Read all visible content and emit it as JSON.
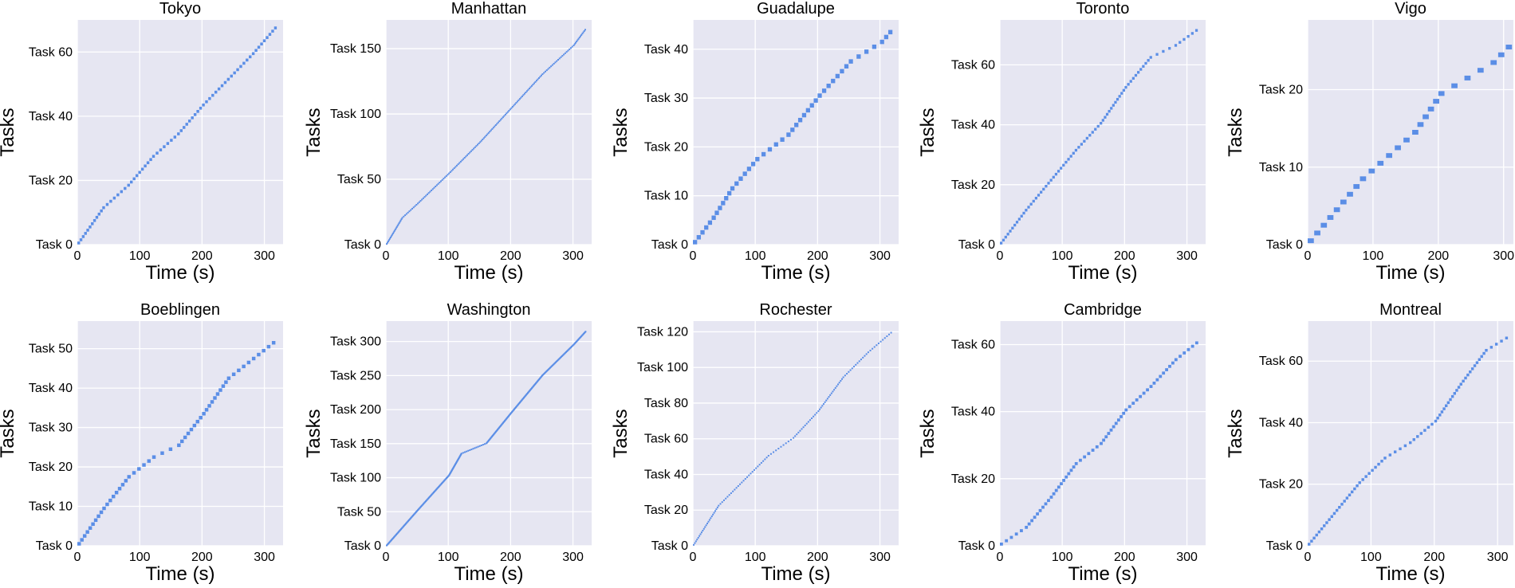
{
  "figure": {
    "xlabel": "Time (s)",
    "ylabel": "Tasks"
  },
  "chart_data": [
    {
      "type": "scatter",
      "title": "Tokyo",
      "xlabel": "Time (s)",
      "ylabel": "Tasks",
      "xlim": [
        0,
        330
      ],
      "ylim": [
        0,
        70
      ],
      "xticks": [
        0,
        100,
        200,
        300
      ],
      "xtick_labels": [
        "0",
        "100",
        "200",
        "300"
      ],
      "yticks": [
        0,
        20,
        40,
        60
      ],
      "ytick_labels": [
        "Task 0",
        "Task 20",
        "Task 40",
        "Task 60"
      ],
      "x": [
        0,
        40,
        80,
        120,
        160,
        200,
        240,
        280,
        320
      ],
      "y": [
        0,
        11,
        18,
        27,
        34,
        43,
        51,
        59,
        68
      ]
    },
    {
      "type": "scatter",
      "title": "Manhattan",
      "xlabel": "Time (s)",
      "ylabel": "Tasks",
      "xlim": [
        0,
        330
      ],
      "ylim": [
        0,
        172
      ],
      "xticks": [
        0,
        100,
        200,
        300
      ],
      "xtick_labels": [
        "0",
        "100",
        "200",
        "300"
      ],
      "yticks": [
        0,
        50,
        100,
        150
      ],
      "ytick_labels": [
        "Task 0",
        "Task 50",
        "Task 100",
        "Task 150"
      ],
      "x": [
        0,
        25,
        50,
        100,
        150,
        200,
        250,
        300,
        320
      ],
      "y": [
        0,
        20,
        31,
        54,
        78,
        104,
        130,
        152,
        165
      ]
    },
    {
      "type": "scatter",
      "title": "Guadalupe",
      "xlabel": "Time (s)",
      "ylabel": "Tasks",
      "xlim": [
        0,
        330
      ],
      "ylim": [
        0,
        46
      ],
      "xticks": [
        0,
        100,
        200,
        300
      ],
      "xtick_labels": [
        "0",
        "100",
        "200",
        "300"
      ],
      "yticks": [
        0,
        10,
        20,
        30,
        40
      ],
      "ytick_labels": [
        "Task 0",
        "Task 10",
        "Task 20",
        "Task 30",
        "Task 40"
      ],
      "x": [
        0,
        30,
        60,
        100,
        150,
        200,
        250,
        300,
        320
      ],
      "y": [
        0,
        5,
        11,
        17,
        22,
        30,
        37,
        41,
        44
      ]
    },
    {
      "type": "scatter",
      "title": "Toronto",
      "xlabel": "Time (s)",
      "ylabel": "Tasks",
      "xlim": [
        0,
        330
      ],
      "ylim": [
        0,
        75
      ],
      "xticks": [
        0,
        100,
        200,
        300
      ],
      "xtick_labels": [
        "0",
        "100",
        "200",
        "300"
      ],
      "yticks": [
        0,
        20,
        40,
        60
      ],
      "ytick_labels": [
        "Task 0",
        "Task 20",
        "Task 40",
        "Task 60"
      ],
      "x": [
        0,
        40,
        80,
        120,
        160,
        200,
        240,
        280,
        320
      ],
      "y": [
        0,
        11,
        21,
        31,
        40,
        52,
        62,
        66,
        72
      ]
    },
    {
      "type": "scatter",
      "title": "Vigo",
      "xlabel": "Time (s)",
      "ylabel": "Tasks",
      "xlim": [
        0,
        315
      ],
      "ylim": [
        0,
        29
      ],
      "xticks": [
        0,
        100,
        200,
        300
      ],
      "xtick_labels": [
        "0",
        "100",
        "200",
        "300"
      ],
      "yticks": [
        0,
        10,
        20
      ],
      "ytick_labels": [
        "Task 0",
        "Task 10",
        "Task 20"
      ],
      "x": [
        0,
        40,
        80,
        120,
        160,
        200,
        240,
        280,
        315
      ],
      "y": [
        0,
        4,
        8,
        11,
        14,
        19,
        21,
        23,
        26
      ]
    },
    {
      "type": "scatter",
      "title": "Boeblingen",
      "xlabel": "Time (s)",
      "ylabel": "Tasks",
      "xlim": [
        0,
        330
      ],
      "ylim": [
        0,
        57
      ],
      "xticks": [
        0,
        100,
        200,
        300
      ],
      "xtick_labels": [
        "0",
        "100",
        "200",
        "300"
      ],
      "yticks": [
        0,
        10,
        20,
        30,
        40,
        50
      ],
      "ytick_labels": [
        "Task 0",
        "Task 10",
        "Task 20",
        "Task 30",
        "Task 40",
        "Task 50"
      ],
      "x": [
        0,
        40,
        80,
        120,
        160,
        200,
        240,
        280,
        320
      ],
      "y": [
        0,
        9,
        17,
        22,
        25,
        33,
        42,
        47,
        52
      ]
    },
    {
      "type": "scatter",
      "title": "Washington",
      "xlabel": "Time (s)",
      "ylabel": "Tasks",
      "xlim": [
        0,
        330
      ],
      "ylim": [
        0,
        330
      ],
      "xticks": [
        0,
        100,
        200,
        300
      ],
      "xtick_labels": [
        "0",
        "100",
        "200",
        "300"
      ],
      "yticks": [
        0,
        50,
        100,
        150,
        200,
        250,
        300
      ],
      "ytick_labels": [
        "Task 0",
        "Task 50",
        "Task 100",
        "Task 150",
        "Task 200",
        "Task 250",
        "Task 300"
      ],
      "x": [
        0,
        50,
        100,
        120,
        160,
        200,
        250,
        300,
        320
      ],
      "y": [
        0,
        52,
        103,
        135,
        150,
        195,
        250,
        295,
        315
      ]
    },
    {
      "type": "scatter",
      "title": "Rochester",
      "xlabel": "Time (s)",
      "ylabel": "Tasks",
      "xlim": [
        0,
        330
      ],
      "ylim": [
        0,
        126
      ],
      "xticks": [
        0,
        100,
        200,
        300
      ],
      "xtick_labels": [
        "0",
        "100",
        "200",
        "300"
      ],
      "yticks": [
        0,
        20,
        40,
        60,
        80,
        100,
        120
      ],
      "ytick_labels": [
        "Task 0",
        "Task 20",
        "Task 40",
        "Task 60",
        "Task 80",
        "Task 100",
        "Task 120"
      ],
      "x": [
        0,
        40,
        80,
        120,
        160,
        200,
        240,
        280,
        320
      ],
      "y": [
        0,
        22,
        36,
        50,
        60,
        75,
        94,
        108,
        120
      ]
    },
    {
      "type": "scatter",
      "title": "Cambridge",
      "xlabel": "Time (s)",
      "ylabel": "Tasks",
      "xlim": [
        0,
        330
      ],
      "ylim": [
        0,
        67
      ],
      "xticks": [
        0,
        100,
        200,
        300
      ],
      "xtick_labels": [
        "0",
        "100",
        "200",
        "300"
      ],
      "yticks": [
        0,
        20,
        40,
        60
      ],
      "ytick_labels": [
        "Task 0",
        "Task 20",
        "Task 40",
        "Task 60"
      ],
      "x": [
        0,
        40,
        80,
        120,
        160,
        200,
        240,
        280,
        320
      ],
      "y": [
        0,
        5,
        14,
        24,
        30,
        40,
        47,
        55,
        61
      ]
    },
    {
      "type": "scatter",
      "title": "Montreal",
      "xlabel": "Time (s)",
      "ylabel": "Tasks",
      "xlim": [
        0,
        325
      ],
      "ylim": [
        0,
        73
      ],
      "xticks": [
        0,
        100,
        200,
        300
      ],
      "xtick_labels": [
        "0",
        "100",
        "200",
        "300"
      ],
      "yticks": [
        0,
        20,
        40,
        60
      ],
      "ytick_labels": [
        "Task 0",
        "Task 20",
        "Task 40",
        "Task 60"
      ],
      "x": [
        0,
        40,
        80,
        120,
        160,
        200,
        240,
        280,
        320
      ],
      "y": [
        0,
        10,
        20,
        28,
        33,
        40,
        52,
        63,
        68
      ]
    }
  ]
}
